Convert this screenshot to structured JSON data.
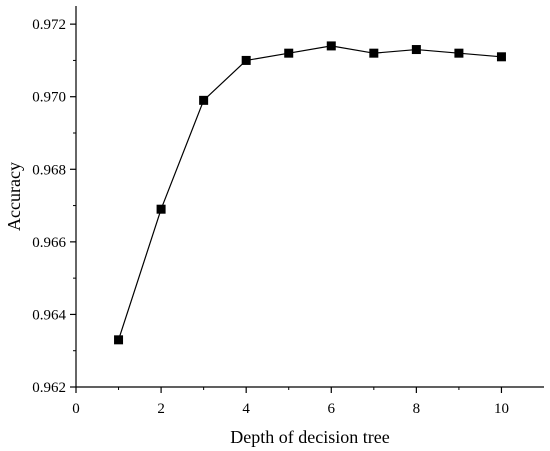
{
  "chart_data": {
    "type": "line",
    "xlabel": "Depth of decision tree",
    "ylabel": "Accuracy",
    "xlim": [
      0,
      11
    ],
    "ylim": [
      0.962,
      0.9725
    ],
    "xticks": [
      0,
      2,
      4,
      6,
      8,
      10
    ],
    "yticks": [
      0.962,
      0.964,
      0.966,
      0.968,
      0.97,
      0.972
    ],
    "ytick_labels": [
      "0.962",
      "0.964",
      "0.966",
      "0.968",
      "0.970",
      "0.972"
    ],
    "grid": false,
    "marker": "square",
    "series": [
      {
        "x": [
          1,
          2,
          3,
          4,
          5,
          6,
          7,
          8,
          9,
          10
        ],
        "y": [
          0.9633,
          0.9669,
          0.9699,
          0.971,
          0.9712,
          0.9714,
          0.9712,
          0.9713,
          0.9712,
          0.9711
        ]
      }
    ],
    "colors": {
      "line": "#000000",
      "marker": "#000000",
      "axis": "#000000"
    }
  }
}
